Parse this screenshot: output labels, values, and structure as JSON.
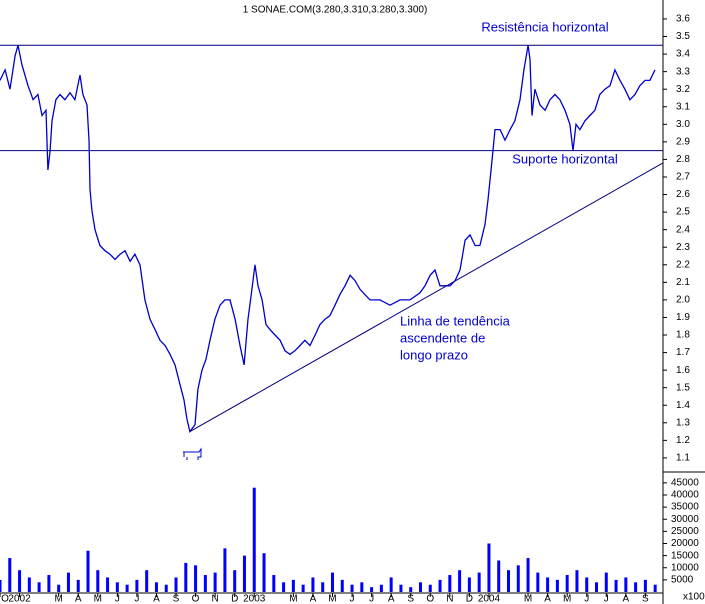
{
  "chart_data": [
    {
      "type": "line",
      "title": "1 SONAE.COM(3.280,3.310,3.280,3.300)",
      "color": "#0000cc",
      "x": [
        -1.0,
        -0.74,
        -0.49,
        -0.23,
        -0.08,
        0.12,
        0.43,
        0.69,
        0.94,
        1.15,
        1.35,
        1.45,
        1.56,
        1.66,
        1.86,
        2.07,
        2.32,
        2.58,
        2.83,
        3.09,
        3.24,
        3.45,
        3.55,
        3.6,
        3.7,
        3.86,
        4.11,
        4.37,
        4.62,
        4.88,
        5.14,
        5.39,
        5.65,
        5.9,
        6.16,
        6.41,
        6.67,
        6.93,
        7.18,
        7.44,
        7.69,
        7.95,
        8.2,
        8.41,
        8.56,
        8.71,
        8.97,
        9.12,
        9.33,
        9.53,
        9.74,
        9.99,
        10.25,
        10.5,
        10.76,
        11.02,
        11.27,
        11.48,
        11.68,
        11.88,
        12.04,
        12.19,
        12.4,
        12.6,
        12.81,
        13.06,
        13.32,
        13.57,
        13.83,
        14.08,
        14.34,
        14.59,
        14.85,
        15.11,
        15.36,
        15.62,
        15.87,
        16.13,
        16.38,
        16.64,
        16.9,
        17.15,
        17.41,
        17.66,
        17.92,
        18.43,
        18.94,
        19.45,
        19.96,
        20.47,
        20.73,
        20.99,
        21.24,
        21.5,
        22.01,
        22.27,
        22.52,
        22.78,
        23.03,
        23.29,
        23.54,
        23.8,
        23.95,
        24.16,
        24.31,
        24.57,
        24.82,
        25.08,
        25.33,
        25.59,
        25.79,
        26.0,
        26.1,
        26.2,
        26.35,
        26.61,
        26.87,
        27.12,
        27.38,
        27.63,
        27.89,
        28.14,
        28.3,
        28.45,
        28.65,
        28.91,
        29.16,
        29.42,
        29.67,
        29.93,
        30.19,
        30.44,
        30.7,
        30.95,
        31.21,
        31.47,
        31.72,
        31.98,
        32.23,
        32.49
      ],
      "values": [
        3.25,
        3.31,
        3.2,
        3.39,
        3.45,
        3.34,
        3.22,
        3.14,
        3.17,
        3.05,
        3.08,
        2.74,
        2.85,
        3.02,
        3.14,
        3.17,
        3.14,
        3.18,
        3.14,
        3.28,
        3.17,
        3.11,
        2.91,
        2.63,
        2.51,
        2.4,
        2.31,
        2.28,
        2.26,
        2.23,
        2.26,
        2.28,
        2.22,
        2.26,
        2.2,
        2.0,
        1.89,
        1.83,
        1.77,
        1.74,
        1.69,
        1.63,
        1.52,
        1.43,
        1.32,
        1.25,
        1.29,
        1.49,
        1.6,
        1.66,
        1.77,
        1.89,
        1.97,
        2.0,
        2.0,
        1.89,
        1.74,
        1.63,
        1.89,
        2.06,
        2.2,
        2.08,
        2.0,
        1.86,
        1.83,
        1.8,
        1.77,
        1.71,
        1.69,
        1.71,
        1.74,
        1.77,
        1.74,
        1.8,
        1.86,
        1.89,
        1.91,
        1.97,
        2.03,
        2.08,
        2.14,
        2.11,
        2.06,
        2.03,
        2.0,
        2.0,
        1.97,
        2.0,
        2.0,
        2.04,
        2.08,
        2.14,
        2.17,
        2.08,
        2.08,
        2.11,
        2.17,
        2.34,
        2.37,
        2.31,
        2.31,
        2.43,
        2.57,
        2.8,
        2.97,
        2.97,
        2.91,
        2.97,
        3.02,
        3.14,
        3.31,
        3.45,
        3.37,
        3.05,
        3.2,
        3.11,
        3.08,
        3.14,
        3.17,
        3.14,
        3.08,
        3.0,
        2.85,
        3.0,
        2.97,
        3.02,
        3.05,
        3.08,
        3.17,
        3.2,
        3.22,
        3.31,
        3.25,
        3.2,
        3.14,
        3.17,
        3.22,
        3.25,
        3.25,
        3.31
      ],
      "xlim": [
        -1,
        32.9
      ],
      "ylim": [
        1.05,
        3.7
      ],
      "yticks": [
        1.1,
        1.2,
        1.3,
        1.4,
        1.5,
        1.6,
        1.7,
        1.8,
        1.9,
        {
          "value": 2,
          "label": "2.0"
        },
        2.1,
        2.2,
        2.3,
        2.4,
        2.5,
        2.6,
        2.7,
        2.8,
        2.9,
        {
          "value": 3,
          "label": "3.0"
        },
        3.1,
        3.2,
        3.3,
        3.4,
        3.5,
        3.6
      ],
      "resistance": 3.45,
      "support": 2.85,
      "trend_line": {
        "x": [
          8.71,
          32.9
        ],
        "y": [
          1.25,
          2.78
        ]
      },
      "annotations": {
        "resistance": "Resistência horizontal",
        "support": "Suporte horizontal",
        "trend": [
          "Linha de tendência",
          "ascendente de",
          "longo prazo"
        ]
      }
    },
    {
      "type": "bar",
      "color": "#0000ff",
      "unit_label": "x100",
      "x": [
        -1,
        -0.5,
        0,
        0.5,
        1,
        1.5,
        2,
        2.5,
        3,
        3.5,
        4,
        4.5,
        5,
        5.5,
        6,
        6.5,
        7,
        7.5,
        8,
        8.5,
        9,
        9.5,
        10,
        10.5,
        11,
        11.5,
        12,
        12.5,
        13,
        13.5,
        14,
        14.5,
        15,
        15.5,
        16,
        16.5,
        17,
        17.5,
        18,
        18.5,
        19,
        19.5,
        20,
        20.5,
        21,
        21.5,
        22,
        22.5,
        23,
        23.5,
        24,
        24.5,
        25,
        25.5,
        26,
        26.5,
        27,
        27.5,
        28,
        28.5,
        29,
        29.5,
        30,
        30.5,
        31,
        31.5,
        32,
        32.5
      ],
      "values": [
        5000,
        14000,
        9000,
        6000,
        4000,
        7000,
        3000,
        8000,
        5000,
        17000,
        9000,
        6000,
        4000,
        3000,
        5000,
        9000,
        4000,
        3000,
        6000,
        12000,
        11000,
        7000,
        8000,
        18000,
        9000,
        15000,
        43000,
        16000,
        7000,
        4000,
        5000,
        3000,
        6000,
        4000,
        8000,
        5000,
        3000,
        4000,
        2000,
        3000,
        6000,
        3000,
        2000,
        4000,
        3000,
        5000,
        7000,
        9000,
        6000,
        8000,
        20000,
        13000,
        9000,
        11000,
        14000,
        8000,
        6000,
        5000,
        7000,
        9000,
        6000,
        4000,
        8000,
        5000,
        6000,
        4000,
        5000,
        3000
      ],
      "xlim": [
        -1,
        32.9
      ],
      "ylim": [
        0,
        47000
      ],
      "yticks": [
        5000,
        10000,
        15000,
        20000,
        25000,
        30000,
        35000,
        40000,
        45000
      ],
      "xticks": [
        {
          "value": -1,
          "label": "O"
        },
        {
          "value": 0,
          "label": "2002"
        },
        {
          "value": 2,
          "label": "M"
        },
        {
          "value": 3,
          "label": "A"
        },
        {
          "value": 4,
          "label": "M"
        },
        {
          "value": 5,
          "label": "J"
        },
        {
          "value": 6,
          "label": "J"
        },
        {
          "value": 7,
          "label": "A"
        },
        {
          "value": 8,
          "label": "S"
        },
        {
          "value": 9,
          "label": "O"
        },
        {
          "value": 10,
          "label": "N"
        },
        {
          "value": 11,
          "label": "D"
        },
        {
          "value": 12,
          "label": "2003"
        },
        {
          "value": 14,
          "label": "M"
        },
        {
          "value": 15,
          "label": "A"
        },
        {
          "value": 16,
          "label": "M"
        },
        {
          "value": 17,
          "label": "J"
        },
        {
          "value": 18,
          "label": "J"
        },
        {
          "value": 19,
          "label": "A"
        },
        {
          "value": 20,
          "label": "S"
        },
        {
          "value": 21,
          "label": "O"
        },
        {
          "value": 22,
          "label": "N"
        },
        {
          "value": 23,
          "label": "D"
        },
        {
          "value": 24,
          "label": "2004"
        },
        {
          "value": 26,
          "label": "M"
        },
        {
          "value": 27,
          "label": "A"
        },
        {
          "value": 28,
          "label": "M"
        },
        {
          "value": 29,
          "label": "J"
        },
        {
          "value": 30,
          "label": "J"
        },
        {
          "value": 31,
          "label": "A"
        },
        {
          "value": 32,
          "label": "S"
        }
      ]
    }
  ]
}
